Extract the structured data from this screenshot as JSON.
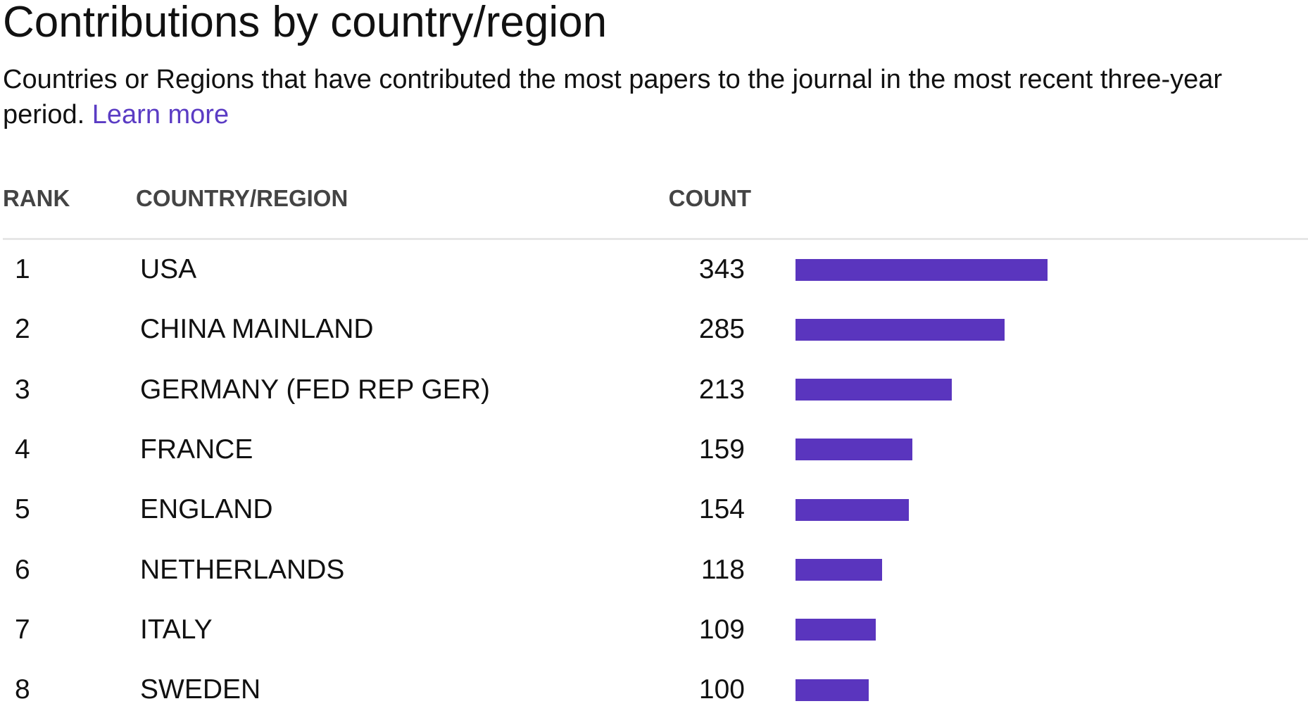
{
  "header": {
    "title": "Contributions by country/region",
    "description": "Countries or Regions that have contributed the most papers to the journal in the most recent three-year period.",
    "link": "Learn more"
  },
  "table": {
    "columns": [
      "RANK",
      "COUNTRY/REGION",
      "COUNT"
    ],
    "rows": [
      {
        "rank": 1,
        "country": "USA",
        "count": 343
      },
      {
        "rank": 2,
        "country": "CHINA MAINLAND",
        "count": 285
      },
      {
        "rank": 3,
        "country": "GERMANY (FED REP GER)",
        "count": 213
      },
      {
        "rank": 4,
        "country": "FRANCE",
        "count": 159
      },
      {
        "rank": 5,
        "country": "ENGLAND",
        "count": 154
      },
      {
        "rank": 6,
        "country": "NETHERLANDS",
        "count": 118
      },
      {
        "rank": 7,
        "country": "ITALY",
        "count": 109
      },
      {
        "rank": 8,
        "country": "SWEDEN",
        "count": 100
      }
    ]
  }
}
